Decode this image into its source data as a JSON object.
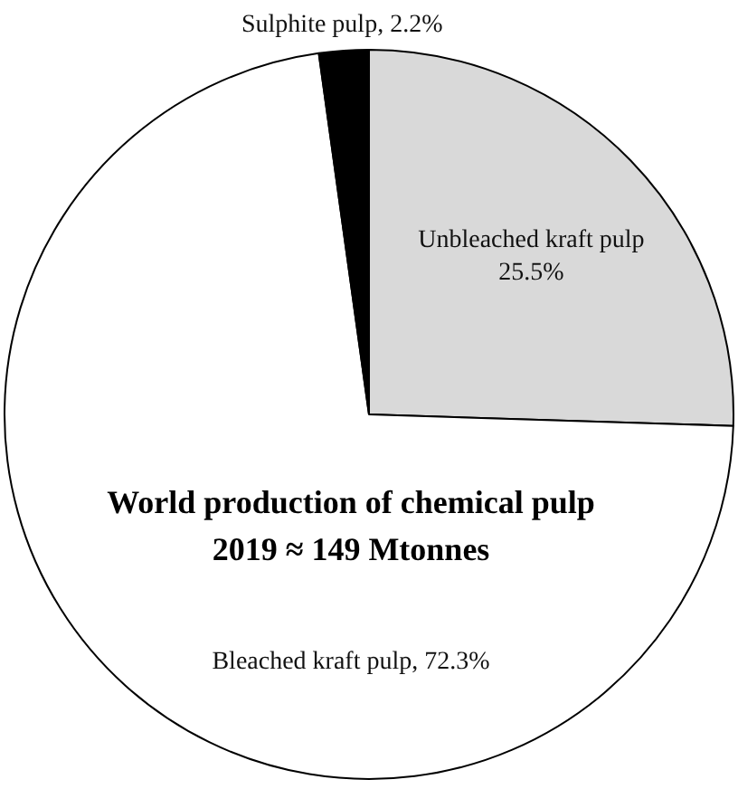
{
  "chart_data": {
    "type": "pie",
    "title": "World production of chemical pulp",
    "subtitle": "2019 ≈ 149 Mtonnes",
    "categories": [
      "Unbleached kraft pulp",
      "Bleached kraft pulp",
      "Sulphite pulp"
    ],
    "values": [
      25.5,
      72.3,
      2.2
    ],
    "colors": [
      "#d9d9d9",
      "#ffffff",
      "#000000"
    ],
    "value_labels": [
      "25.5%",
      "72.3%",
      "2.2%"
    ],
    "legend": false
  }
}
